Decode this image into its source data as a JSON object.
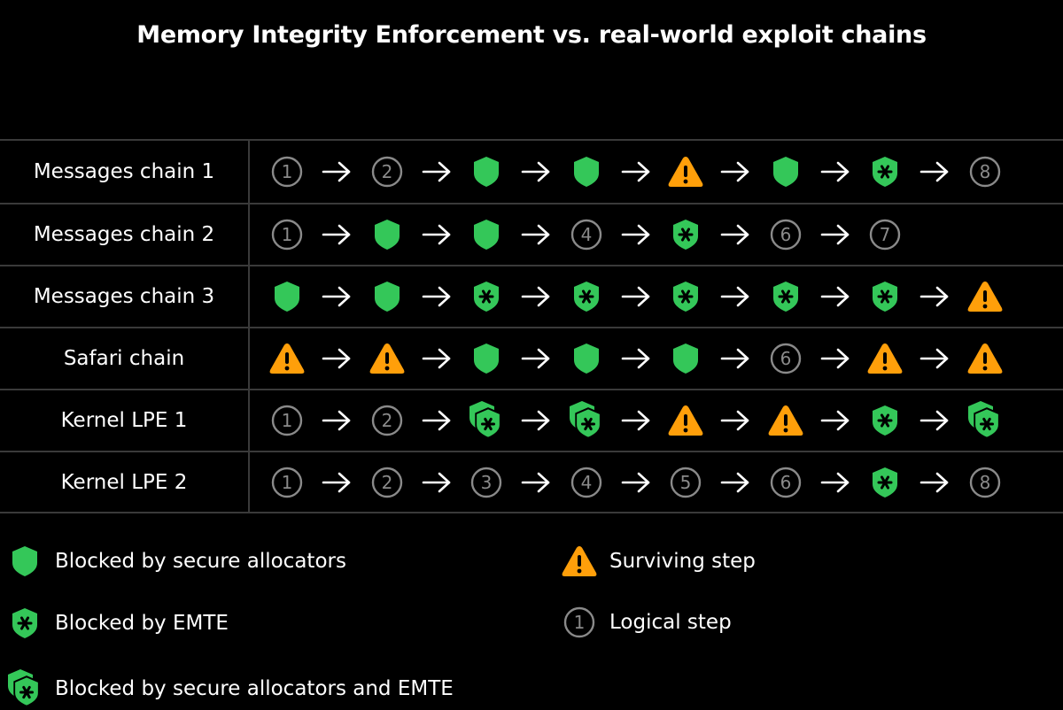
{
  "title": "Memory Integrity Enforcement vs. real-world exploit chains",
  "colors": {
    "green": "#34c759",
    "orange": "#ff9f0a",
    "logical": "#8a8a8a",
    "grid": "#3a3a3a"
  },
  "icons": {
    "secure": "shield-icon",
    "emte": "asterisk-shield-icon",
    "both": "double-shield-asterisk-icon",
    "warn": "warning-triangle-icon",
    "logical": "numbered-circle-icon",
    "arrow": "arrow-right-icon"
  },
  "chains": [
    {
      "label": "Messages chain 1",
      "steps": [
        {
          "type": "logical",
          "n": "1"
        },
        {
          "type": "logical",
          "n": "2"
        },
        {
          "type": "secure"
        },
        {
          "type": "secure"
        },
        {
          "type": "warn"
        },
        {
          "type": "secure"
        },
        {
          "type": "emte"
        },
        {
          "type": "logical",
          "n": "8"
        }
      ]
    },
    {
      "label": "Messages chain 2",
      "steps": [
        {
          "type": "logical",
          "n": "1"
        },
        {
          "type": "secure"
        },
        {
          "type": "secure"
        },
        {
          "type": "logical",
          "n": "4"
        },
        {
          "type": "emte"
        },
        {
          "type": "logical",
          "n": "6"
        },
        {
          "type": "logical",
          "n": "7"
        }
      ]
    },
    {
      "label": "Messages chain 3",
      "steps": [
        {
          "type": "secure"
        },
        {
          "type": "secure"
        },
        {
          "type": "emte"
        },
        {
          "type": "emte"
        },
        {
          "type": "emte"
        },
        {
          "type": "emte"
        },
        {
          "type": "emte"
        },
        {
          "type": "warn"
        }
      ]
    },
    {
      "label": "Safari chain",
      "steps": [
        {
          "type": "warn"
        },
        {
          "type": "warn"
        },
        {
          "type": "secure"
        },
        {
          "type": "secure"
        },
        {
          "type": "secure"
        },
        {
          "type": "logical",
          "n": "6"
        },
        {
          "type": "warn"
        },
        {
          "type": "warn"
        }
      ]
    },
    {
      "label": "Kernel LPE 1",
      "steps": [
        {
          "type": "logical",
          "n": "1"
        },
        {
          "type": "logical",
          "n": "2"
        },
        {
          "type": "both"
        },
        {
          "type": "both"
        },
        {
          "type": "warn"
        },
        {
          "type": "warn"
        },
        {
          "type": "emte"
        },
        {
          "type": "both"
        }
      ]
    },
    {
      "label": "Kernel LPE 2",
      "steps": [
        {
          "type": "logical",
          "n": "1"
        },
        {
          "type": "logical",
          "n": "2"
        },
        {
          "type": "logical",
          "n": "3"
        },
        {
          "type": "logical",
          "n": "4"
        },
        {
          "type": "logical",
          "n": "5"
        },
        {
          "type": "logical",
          "n": "6"
        },
        {
          "type": "emte"
        },
        {
          "type": "logical",
          "n": "8"
        }
      ]
    }
  ],
  "legend": {
    "secure": "Blocked by secure allocators",
    "emte": "Blocked by EMTE",
    "both": "Blocked by secure allocators and EMTE",
    "warn": "Surviving step",
    "logical": "Logical step",
    "logical_example": "1"
  }
}
